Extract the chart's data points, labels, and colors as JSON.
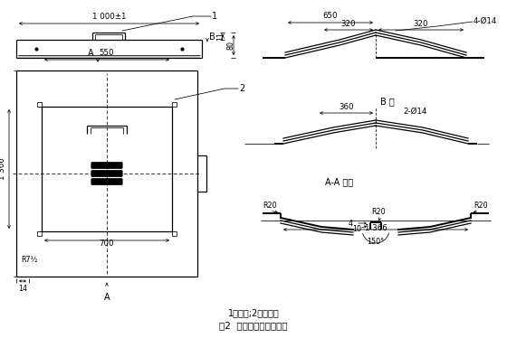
{
  "bg_color": "#ffffff",
  "subtitle": "1－罩壳;2－观察盖",
  "title_fig": "图2  新型盖板结构示意图",
  "label_B_dir": "B 向",
  "label_AA": "A-A 旋转",
  "lw_thin": 0.55,
  "lw_mid": 0.9,
  "lw_thick": 1.4,
  "fs": 7,
  "fs_dim": 6.2,
  "fs_small": 5.8
}
